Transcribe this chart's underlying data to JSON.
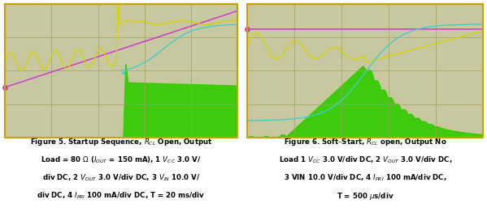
{
  "fig_width": 5.99,
  "fig_height": 2.57,
  "screen_bg": "#c8c8a0",
  "grid_color": "#a0a060",
  "border_color": "#c8a000",
  "pink_color": "#cc44cc",
  "yellow_color": "#d4d400",
  "cyan_color": "#44cccc",
  "green_fill": "#33cc00",
  "cap1_line1": "Figure 5. Startup Sequence, $R_{CL}$ Open, Output",
  "cap1_line2": "Load = 80 $\\Omega$ ($I_{OUT}$ = 150 mA), 1 $V_{CC}$ 3.0 V/",
  "cap1_line3": "div DC, 2 $V_{OUT}$ 3.0 V/div DC, 3 $V_{IN}$ 10.0 V/",
  "cap1_line4": "div DC, 4 $I_{PRI}$ 100 mA/div DC, T = 20 ms/div",
  "cap2_line1": "Figure 6. Soft–Start, $R_{CL}$ open, Output No",
  "cap2_line2": "Load 1 $V_{CC}$ 3.0 V/div DC, 2 $V_{OUT}$ 3.0 V/div DC,",
  "cap2_line3": "3 VIN 10.0 V/div DC, 4 $I_{PRI}$ 100 mA/div DC,",
  "cap2_line4": "T = 500 $\\mu$s/div"
}
